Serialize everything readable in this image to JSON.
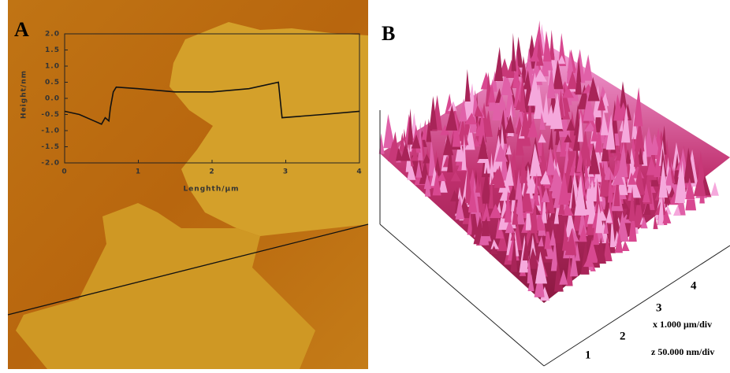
{
  "chart_data": {
    "type": "line",
    "x": [
      0,
      0.2,
      0.4,
      0.5,
      0.55,
      0.6,
      0.62,
      0.66,
      0.7,
      1.0,
      1.5,
      2.0,
      2.5,
      2.9,
      2.95,
      3.5,
      4.0
    ],
    "values": [
      -0.4,
      -0.5,
      -0.7,
      -0.8,
      -0.6,
      -0.7,
      -0.3,
      0.2,
      0.35,
      0.3,
      0.2,
      0.2,
      0.3,
      0.5,
      -0.6,
      -0.5,
      -0.4
    ],
    "color": "#111111",
    "xlabel": "Lenghth/μm",
    "ylabel": "Height/nm",
    "xlim": [
      0,
      4
    ],
    "ylim": [
      -2,
      2
    ],
    "xticks": [
      0,
      1,
      2,
      3,
      4
    ],
    "yticks": [
      {
        "value": 2,
        "label": "2.0"
      },
      1.5,
      {
        "value": 1,
        "label": "1.0"
      },
      0.5,
      {
        "value": 0,
        "label": "0.0"
      },
      -0.5,
      {
        "value": -1,
        "label": "-1.0"
      },
      -1.5,
      {
        "value": -2,
        "label": "-2.0"
      }
    ],
    "grid": false
  },
  "panels": {
    "a_label": "A",
    "b_label": "B",
    "axis_ticks": [
      "1",
      "2",
      "3",
      "4"
    ],
    "x_scale": "x 1.000 μm/div",
    "z_scale": "z 50.000 nm/div"
  }
}
